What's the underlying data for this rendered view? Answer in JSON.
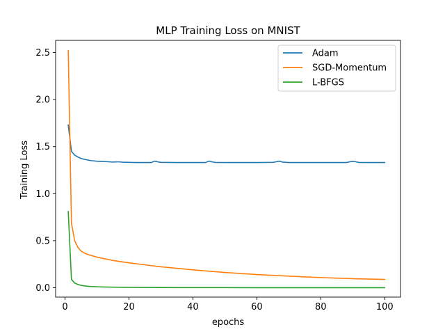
{
  "chart_data": {
    "type": "line",
    "title": "MLP Training Loss on MNIST",
    "xlabel": "epochs",
    "ylabel": "Training Loss",
    "xlim": [
      -2.95,
      104.95
    ],
    "ylim": [
      -0.1,
      2.63
    ],
    "xticks": [
      0,
      20,
      40,
      60,
      80,
      100
    ],
    "xtick_labels": [
      "0",
      "20",
      "40",
      "60",
      "80",
      "100"
    ],
    "yticks": [
      0.0,
      0.5,
      1.0,
      1.5,
      2.0,
      2.5
    ],
    "ytick_labels": [
      "0.0",
      "0.5",
      "1.0",
      "1.5",
      "2.0",
      "2.5"
    ],
    "grid": false,
    "legend_position": "top-right",
    "series": [
      {
        "name": "Adam",
        "color": "#1f77b4",
        "x": [
          1,
          2,
          3,
          4,
          5,
          6,
          8,
          10,
          12,
          14,
          15,
          16,
          17,
          18,
          20,
          22,
          24,
          26,
          27,
          28,
          29,
          30,
          35,
          40,
          44,
          45,
          46,
          47,
          50,
          55,
          60,
          65,
          66,
          67,
          68,
          70,
          75,
          80,
          85,
          88,
          89,
          90,
          91,
          92,
          95,
          100
        ],
        "y": [
          1.73,
          1.45,
          1.41,
          1.39,
          1.375,
          1.365,
          1.352,
          1.345,
          1.342,
          1.338,
          1.336,
          1.338,
          1.338,
          1.335,
          1.333,
          1.331,
          1.331,
          1.331,
          1.331,
          1.346,
          1.338,
          1.333,
          1.331,
          1.331,
          1.331,
          1.346,
          1.338,
          1.332,
          1.331,
          1.331,
          1.331,
          1.333,
          1.338,
          1.346,
          1.336,
          1.331,
          1.331,
          1.331,
          1.331,
          1.331,
          1.338,
          1.344,
          1.338,
          1.332,
          1.331,
          1.331
        ]
      },
      {
        "name": "SGD-Momentum",
        "color": "#ff7f0e",
        "x": [
          1,
          2,
          3,
          4,
          5,
          6,
          7,
          8,
          10,
          12,
          15,
          20,
          25,
          30,
          40,
          50,
          60,
          70,
          80,
          90,
          100
        ],
        "y": [
          2.52,
          0.69,
          0.5,
          0.43,
          0.39,
          0.37,
          0.355,
          0.345,
          0.325,
          0.31,
          0.29,
          0.265,
          0.243,
          0.222,
          0.19,
          0.162,
          0.14,
          0.123,
          0.108,
          0.096,
          0.088
        ]
      },
      {
        "name": "L-BFGS",
        "color": "#2ca02c",
        "x": [
          1,
          2,
          3,
          4,
          5,
          6,
          7,
          8,
          10,
          12,
          15,
          20,
          30,
          40,
          50,
          60,
          70,
          80,
          90,
          100
        ],
        "y": [
          0.81,
          0.09,
          0.05,
          0.035,
          0.025,
          0.02,
          0.016,
          0.013,
          0.01,
          0.008,
          0.006,
          0.004,
          0.002,
          0.001,
          0.001,
          0.0,
          0.0,
          0.0,
          0.0,
          0.0
        ]
      }
    ]
  }
}
